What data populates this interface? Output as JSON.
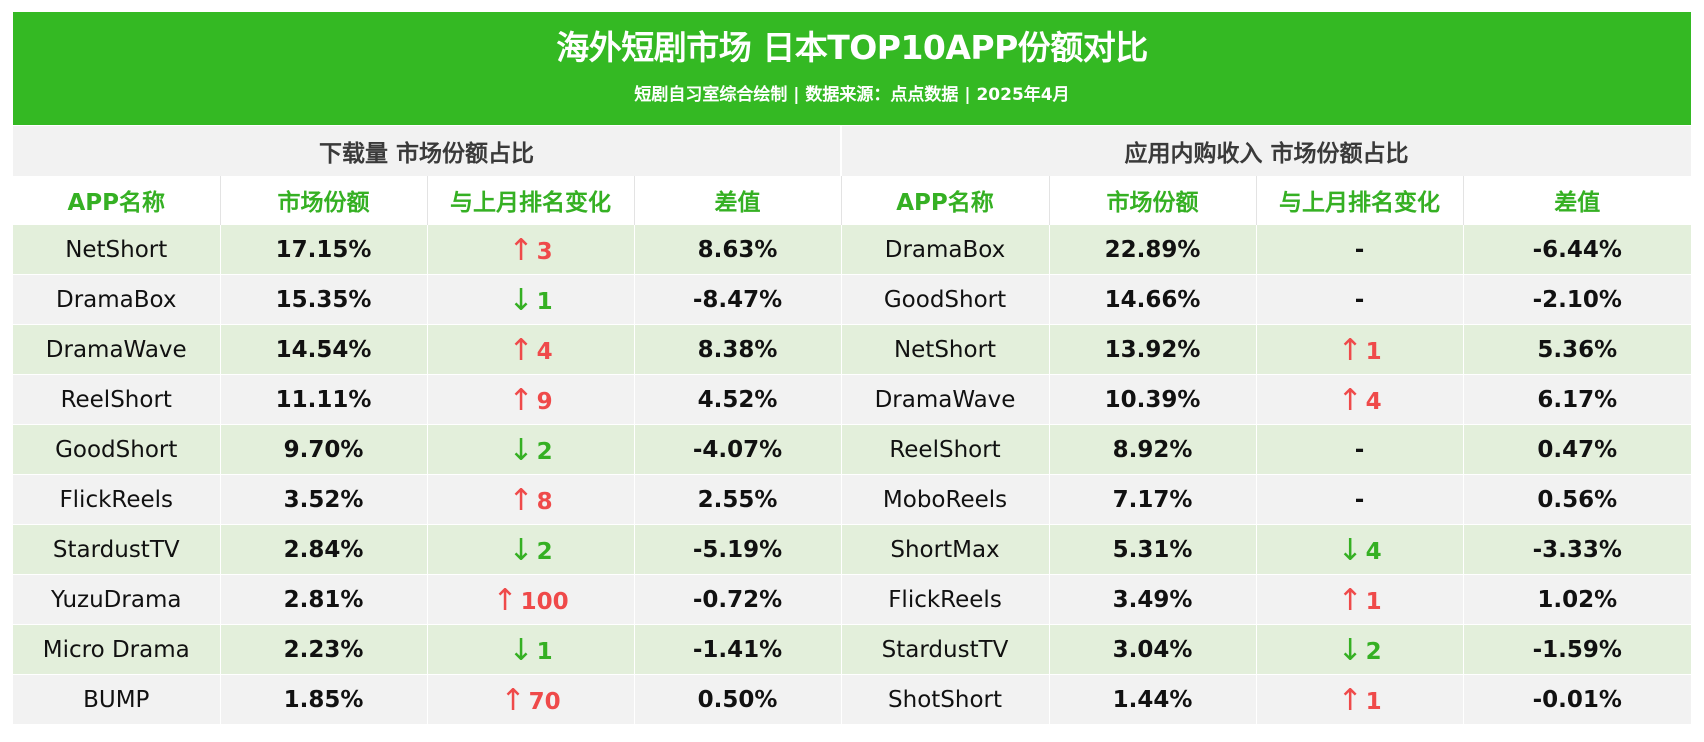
{
  "title": "海外短剧市场 日本TOP10APP份额对比",
  "subtitle": "短剧自习室综合绘制 | 数据来源：点点数据 | 2025年4月",
  "colors": {
    "banner": "#34b923",
    "header_text": "#35b023",
    "up": "#ef4a4a",
    "down": "#35b023",
    "row_odd": "#e3efdb",
    "row_even": "#f2f2f2"
  },
  "left": {
    "section_title": "下载量 市场份额占比",
    "headers": [
      "APP名称",
      "市场份额",
      "与上月排名变化",
      "差值"
    ],
    "rows": [
      {
        "name": "NetShort",
        "share": "17.15%",
        "dir": "up",
        "change": "3",
        "diff": "8.63%"
      },
      {
        "name": "DramaBox",
        "share": "15.35%",
        "dir": "down",
        "change": "1",
        "diff": "-8.47%"
      },
      {
        "name": "DramaWave",
        "share": "14.54%",
        "dir": "up",
        "change": "4",
        "diff": "8.38%"
      },
      {
        "name": "ReelShort",
        "share": "11.11%",
        "dir": "up",
        "change": "9",
        "diff": "4.52%"
      },
      {
        "name": "GoodShort",
        "share": "9.70%",
        "dir": "down",
        "change": "2",
        "diff": "-4.07%"
      },
      {
        "name": "FlickReels",
        "share": "3.52%",
        "dir": "up",
        "change": "8",
        "diff": "2.55%"
      },
      {
        "name": "StardustTV",
        "share": "2.84%",
        "dir": "down",
        "change": "2",
        "diff": "-5.19%"
      },
      {
        "name": "YuzuDrama",
        "share": "2.81%",
        "dir": "up",
        "change": "100",
        "diff": "-0.72%"
      },
      {
        "name": "Micro Drama",
        "share": "2.23%",
        "dir": "down",
        "change": "1",
        "diff": "-1.41%"
      },
      {
        "name": "BUMP",
        "share": "1.85%",
        "dir": "up",
        "change": "70",
        "diff": "0.50%"
      }
    ]
  },
  "right": {
    "section_title": "应用内购收入 市场份额占比",
    "headers": [
      "APP名称",
      "市场份额",
      "与上月排名变化",
      "差值"
    ],
    "rows": [
      {
        "name": "DramaBox",
        "share": "22.89%",
        "dir": "same",
        "change": "-",
        "diff": "-6.44%"
      },
      {
        "name": "GoodShort",
        "share": "14.66%",
        "dir": "same",
        "change": "-",
        "diff": "-2.10%"
      },
      {
        "name": "NetShort",
        "share": "13.92%",
        "dir": "up",
        "change": "1",
        "diff": "5.36%"
      },
      {
        "name": "DramaWave",
        "share": "10.39%",
        "dir": "up",
        "change": "4",
        "diff": "6.17%"
      },
      {
        "name": "ReelShort",
        "share": "8.92%",
        "dir": "same",
        "change": "-",
        "diff": "0.47%"
      },
      {
        "name": "MoboReels",
        "share": "7.17%",
        "dir": "same",
        "change": "-",
        "diff": "0.56%"
      },
      {
        "name": "ShortMax",
        "share": "5.31%",
        "dir": "down",
        "change": "4",
        "diff": "-3.33%"
      },
      {
        "name": "FlickReels",
        "share": "3.49%",
        "dir": "up",
        "change": "1",
        "diff": "1.02%"
      },
      {
        "name": "StardustTV",
        "share": "3.04%",
        "dir": "down",
        "change": "2",
        "diff": "-1.59%"
      },
      {
        "name": "ShotShort",
        "share": "1.44%",
        "dir": "up",
        "change": "1",
        "diff": "-0.01%"
      }
    ]
  }
}
